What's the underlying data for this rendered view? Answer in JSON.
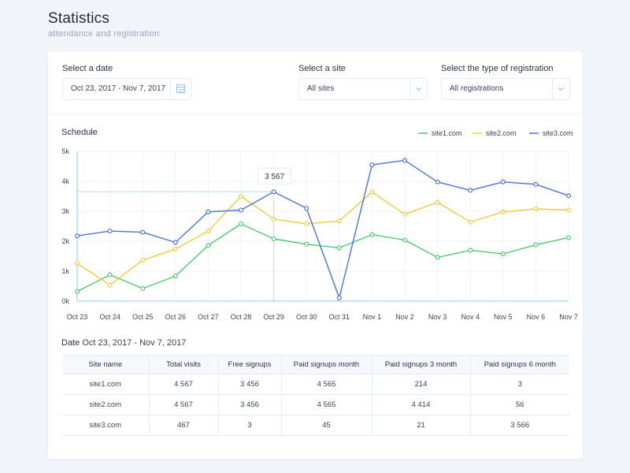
{
  "header": {
    "title": "Statistics",
    "subtitle": "attendance and registration"
  },
  "filters": {
    "date_label": "Select a date",
    "date_value": "Oct 23, 2017 - Nov 7, 2017",
    "site_label": "Select a site",
    "site_value": "All sites",
    "type_label": "Select the type of registration",
    "type_value": "All registrations"
  },
  "schedule_title": "Schedule",
  "tooltip_value": "3 567",
  "colors": {
    "site1": "#4cc96f",
    "site2": "#f2cb3c",
    "site3": "#4a74d9",
    "grid": "#eef2f8",
    "axis": "#b4dbf2"
  },
  "chart_data": {
    "type": "line",
    "categories": [
      "Oct 23",
      "Oct 24",
      "Oct 25",
      "Oct 26",
      "Oct 27",
      "Oct 28",
      "Oct 29",
      "Oct 30",
      "Oct 31",
      "Nov 1",
      "Nov 2",
      "Nov 3",
      "Nov 4",
      "Nov 5",
      "Nov 6",
      "Nov 7"
    ],
    "y_ticks": [
      "0k",
      "1k",
      "2k",
      "3k",
      "4k",
      "5k"
    ],
    "ylim": [
      0,
      5000
    ],
    "grid": true,
    "legend_position": "top-right",
    "series": [
      {
        "name": "site1.com",
        "values": [
          320,
          880,
          420,
          840,
          1860,
          2580,
          2080,
          1900,
          1780,
          2220,
          2040,
          1460,
          1700,
          1580,
          1880,
          2120
        ]
      },
      {
        "name": "site2.com",
        "values": [
          1260,
          540,
          1370,
          1740,
          2340,
          3500,
          2740,
          2580,
          2680,
          3640,
          2900,
          3300,
          2640,
          2980,
          3080,
          3040
        ]
      },
      {
        "name": "site3.com",
        "values": [
          2180,
          2340,
          2300,
          1960,
          2980,
          3040,
          3650,
          3100,
          110,
          4550,
          4700,
          3980,
          3700,
          3980,
          3900,
          3520
        ]
      }
    ],
    "highlight_index": 6
  },
  "table": {
    "caption_label": "Date",
    "caption_range": "Oct 23, 2017 - Nov 7, 2017",
    "headers": [
      "Site name",
      "Total visits",
      "Free signups",
      "Paid signups month",
      "Paid signups 3 month",
      "Paid signups 6 month"
    ],
    "rows": [
      [
        "site1.com",
        "4 567",
        "3 456",
        "4 565",
        "214",
        "3"
      ],
      [
        "site2.com",
        "4 567",
        "3 456",
        "4 565",
        "4 414",
        "56"
      ],
      [
        "site3.com",
        "467",
        "3",
        "45",
        "21",
        "3 566"
      ]
    ]
  }
}
